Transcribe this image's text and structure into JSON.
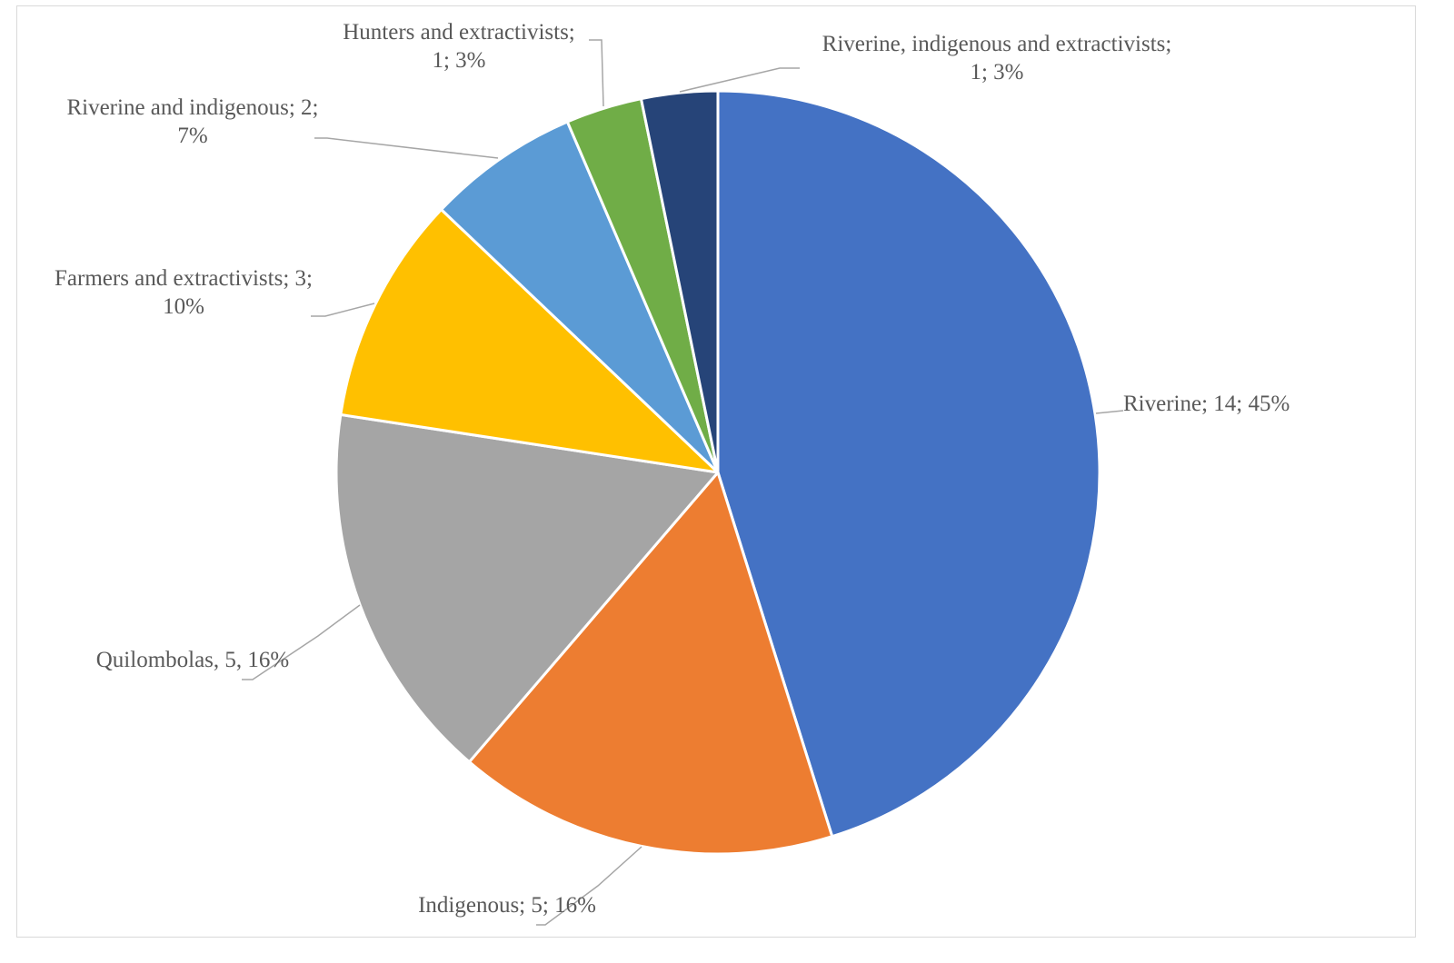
{
  "chart_data": {
    "type": "pie",
    "title": "",
    "slices": [
      {
        "label": "Riverine; 14; 45%",
        "lines": [
          "Riverine; 14; 45%"
        ],
        "value": 14,
        "percent": 45,
        "color": "#4472C4"
      },
      {
        "label": "Indigenous; 5; 16%",
        "lines": [
          "Indigenous; 5; 16%"
        ],
        "value": 5,
        "percent": 16,
        "color": "#ED7D31"
      },
      {
        "label": "Quilombolas, 5, 16%",
        "lines": [
          "Quilombolas, 5, 16%"
        ],
        "value": 5,
        "percent": 16,
        "color": "#A5A5A5"
      },
      {
        "label": "Farmers and extractivists; 3; 10%",
        "lines": [
          "Farmers and extractivists; 3;",
          "10%"
        ],
        "value": 3,
        "percent": 10,
        "color": "#FFC000"
      },
      {
        "label": "Riverine and indigenous; 2; 7%",
        "lines": [
          "Riverine and indigenous; 2;",
          "7%"
        ],
        "value": 2,
        "percent": 7,
        "color": "#5B9BD5"
      },
      {
        "label": "Hunters and extractivists; 1; 3%",
        "lines": [
          "Hunters and extractivists;",
          "1; 3%"
        ],
        "value": 1,
        "percent": 3,
        "color": "#70AD47"
      },
      {
        "label": "Riverine, indigenous and extractivists; 1; 3%",
        "lines": [
          "Riverine, indigenous and extractivists;",
          "1; 3%"
        ],
        "value": 1,
        "percent": 3,
        "color": "#264478"
      }
    ]
  }
}
